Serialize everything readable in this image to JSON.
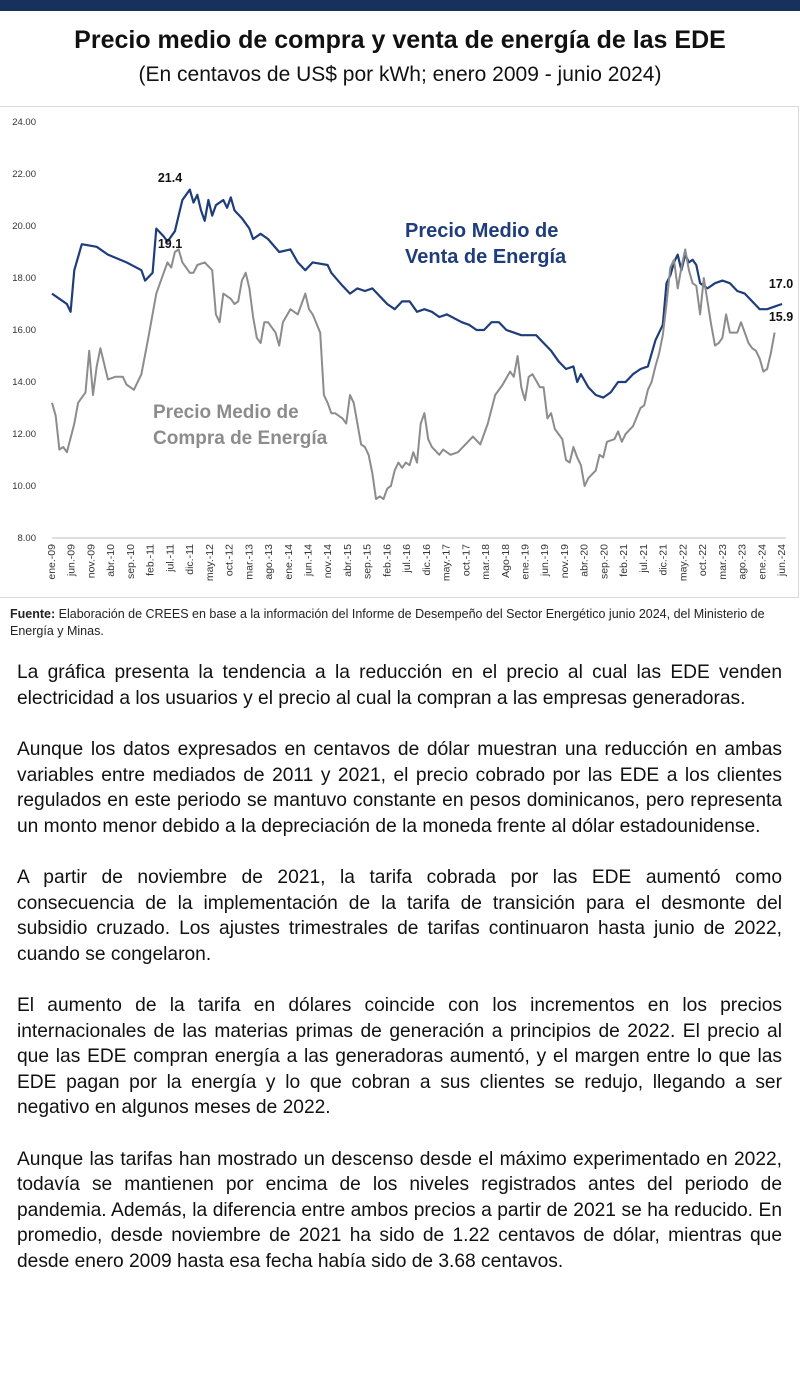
{
  "header": {
    "title": "Precio medio de compra y venta de energía de las EDE",
    "subtitle": "(En centavos de US$ por kWh; enero 2009 - junio 2024)"
  },
  "colors": {
    "topbar": "#16325c",
    "venta": "#1f3d7a",
    "compra": "#8c8c8c"
  },
  "chart_data": {
    "type": "line",
    "title": "Precio medio de compra y venta de energía de las EDE",
    "xlabel": "",
    "ylabel": "",
    "ylim": [
      8,
      24
    ],
    "yticks": [
      "8.00",
      "10.00",
      "12.00",
      "14.00",
      "16.00",
      "18.00",
      "20.00",
      "22.00",
      "24.00"
    ],
    "x_start": "2009-01",
    "x_end": "2024-06",
    "xtick_labels": [
      "ene.-09",
      "jun.-09",
      "nov.-09",
      "abr.-10",
      "sep.-10",
      "feb.-11",
      "jul.-11",
      "dic.-11",
      "may.-12",
      "oct.-12",
      "mar.-13",
      "ago.-13",
      "ene.-14",
      "jun.-14",
      "nov.-14",
      "abr.-15",
      "sep.-15",
      "feb.-16",
      "jul.-16",
      "dic.-16",
      "may.-17",
      "oct.-17",
      "mar.-18",
      "Ago-18",
      "ene.-19",
      "jun.-19",
      "nov.-19",
      "abr.-20",
      "sep.-20",
      "feb.-21",
      "jul.-21",
      "dic.-21",
      "may.-22",
      "oct.-22",
      "mar.-23",
      "ago.-23",
      "ene.-24",
      "jun.-24"
    ],
    "series": [
      {
        "name": "Precio Medio de Venta de Energía",
        "label_line1": "Precio Medio de",
        "label_line2": "Venta de Energía",
        "color": "#1f3d7a",
        "peak_label": "21.4",
        "end_label": "17.0",
        "anchors": [
          [
            0,
            17.4
          ],
          [
            2,
            17.2
          ],
          [
            4,
            17.0
          ],
          [
            5,
            16.7
          ],
          [
            6,
            18.3
          ],
          [
            8,
            19.3
          ],
          [
            12,
            19.2
          ],
          [
            15,
            18.9
          ],
          [
            20,
            18.6
          ],
          [
            24,
            18.3
          ],
          [
            25,
            17.9
          ],
          [
            27,
            18.2
          ],
          [
            28,
            19.9
          ],
          [
            30,
            19.6
          ],
          [
            31,
            19.4
          ],
          [
            33,
            19.8
          ],
          [
            34,
            20.4
          ],
          [
            35,
            21.0
          ],
          [
            36,
            21.2
          ],
          [
            37,
            21.4
          ],
          [
            38,
            20.9
          ],
          [
            39,
            21.2
          ],
          [
            40,
            20.6
          ],
          [
            41,
            20.2
          ],
          [
            42,
            21.0
          ],
          [
            43,
            20.4
          ],
          [
            44,
            20.8
          ],
          [
            46,
            21.0
          ],
          [
            47,
            20.7
          ],
          [
            48,
            21.1
          ],
          [
            49,
            20.6
          ],
          [
            51,
            20.3
          ],
          [
            53,
            19.9
          ],
          [
            54,
            19.5
          ],
          [
            56,
            19.7
          ],
          [
            58,
            19.5
          ],
          [
            61,
            19.0
          ],
          [
            64,
            19.1
          ],
          [
            66,
            18.6
          ],
          [
            68,
            18.3
          ],
          [
            70,
            18.6
          ],
          [
            74,
            18.5
          ],
          [
            75,
            18.2
          ],
          [
            78,
            17.7
          ],
          [
            80,
            17.4
          ],
          [
            82,
            17.6
          ],
          [
            84,
            17.5
          ],
          [
            86,
            17.6
          ],
          [
            88,
            17.3
          ],
          [
            90,
            17.0
          ],
          [
            92,
            16.8
          ],
          [
            94,
            17.1
          ],
          [
            96,
            17.1
          ],
          [
            98,
            16.7
          ],
          [
            100,
            16.8
          ],
          [
            102,
            16.7
          ],
          [
            104,
            16.5
          ],
          [
            106,
            16.6
          ],
          [
            110,
            16.3
          ],
          [
            112,
            16.2
          ],
          [
            114,
            16.0
          ],
          [
            116,
            16.0
          ],
          [
            118,
            16.3
          ],
          [
            120,
            16.3
          ],
          [
            122,
            16.0
          ],
          [
            124,
            15.9
          ],
          [
            126,
            15.8
          ],
          [
            128,
            15.8
          ],
          [
            130,
            15.8
          ],
          [
            132,
            15.5
          ],
          [
            134,
            15.2
          ],
          [
            136,
            14.8
          ],
          [
            138,
            14.5
          ],
          [
            140,
            14.6
          ],
          [
            141,
            14.0
          ],
          [
            142,
            14.3
          ],
          [
            144,
            13.8
          ],
          [
            146,
            13.5
          ],
          [
            148,
            13.4
          ],
          [
            150,
            13.6
          ],
          [
            152,
            14.0
          ],
          [
            154,
            14.0
          ],
          [
            156,
            14.3
          ],
          [
            158,
            14.5
          ],
          [
            160,
            14.6
          ],
          [
            162,
            15.6
          ],
          [
            164,
            16.2
          ],
          [
            165,
            17.8
          ],
          [
            166,
            18.1
          ],
          [
            167,
            18.6
          ],
          [
            168,
            18.9
          ],
          [
            169,
            18.3
          ],
          [
            170,
            18.9
          ],
          [
            171,
            18.6
          ],
          [
            172,
            18.7
          ],
          [
            173,
            18.5
          ],
          [
            174,
            17.8
          ],
          [
            176,
            17.6
          ],
          [
            178,
            17.8
          ],
          [
            180,
            17.9
          ],
          [
            182,
            17.8
          ],
          [
            184,
            17.5
          ],
          [
            186,
            17.4
          ],
          [
            188,
            17.1
          ],
          [
            190,
            16.8
          ],
          [
            192,
            16.8
          ],
          [
            194,
            16.9
          ],
          [
            196,
            17.0
          ]
        ]
      },
      {
        "name": "Precio Medio de Compra de Energía",
        "label_line1": "Precio Medio de",
        "label_line2": "Compra de Energía",
        "color": "#8c8c8c",
        "peak_label": "19.1",
        "end_label": "15.9",
        "anchors": [
          [
            0,
            13.2
          ],
          [
            1,
            12.7
          ],
          [
            2,
            11.4
          ],
          [
            3,
            11.5
          ],
          [
            4,
            11.3
          ],
          [
            6,
            12.4
          ],
          [
            7,
            13.2
          ],
          [
            9,
            13.6
          ],
          [
            10,
            15.2
          ],
          [
            11,
            13.5
          ],
          [
            12,
            14.6
          ],
          [
            13,
            15.3
          ],
          [
            15,
            14.1
          ],
          [
            17,
            14.2
          ],
          [
            19,
            14.2
          ],
          [
            20,
            13.9
          ],
          [
            22,
            13.7
          ],
          [
            24,
            14.3
          ],
          [
            26,
            15.8
          ],
          [
            28,
            17.4
          ],
          [
            30,
            18.2
          ],
          [
            31,
            18.6
          ],
          [
            32,
            18.4
          ],
          [
            33,
            19.0
          ],
          [
            34,
            19.1
          ],
          [
            35,
            18.6
          ],
          [
            36,
            18.4
          ],
          [
            37,
            18.2
          ],
          [
            38,
            18.2
          ],
          [
            39,
            18.5
          ],
          [
            41,
            18.6
          ],
          [
            43,
            18.3
          ],
          [
            44,
            16.6
          ],
          [
            45,
            16.3
          ],
          [
            46,
            17.4
          ],
          [
            48,
            17.2
          ],
          [
            49,
            17.0
          ],
          [
            50,
            17.1
          ],
          [
            51,
            17.9
          ],
          [
            52,
            18.2
          ],
          [
            53,
            17.6
          ],
          [
            54,
            16.5
          ],
          [
            55,
            15.7
          ],
          [
            56,
            15.5
          ],
          [
            57,
            16.3
          ],
          [
            58,
            16.3
          ],
          [
            60,
            15.9
          ],
          [
            61,
            15.4
          ],
          [
            62,
            16.3
          ],
          [
            64,
            16.8
          ],
          [
            66,
            16.6
          ],
          [
            68,
            17.4
          ],
          [
            69,
            16.8
          ],
          [
            70,
            16.6
          ],
          [
            72,
            15.9
          ],
          [
            73,
            13.5
          ],
          [
            74,
            13.2
          ],
          [
            75,
            12.8
          ],
          [
            76,
            12.8
          ],
          [
            78,
            12.6
          ],
          [
            79,
            12.4
          ],
          [
            80,
            13.5
          ],
          [
            81,
            13.2
          ],
          [
            82,
            12.4
          ],
          [
            83,
            11.6
          ],
          [
            84,
            11.5
          ],
          [
            85,
            11.2
          ],
          [
            86,
            10.5
          ],
          [
            87,
            9.5
          ],
          [
            88,
            9.6
          ],
          [
            89,
            9.5
          ],
          [
            90,
            9.9
          ],
          [
            91,
            10.0
          ],
          [
            92,
            10.6
          ],
          [
            93,
            10.9
          ],
          [
            94,
            10.7
          ],
          [
            95,
            10.9
          ],
          [
            96,
            10.8
          ],
          [
            97,
            11.3
          ],
          [
            98,
            10.9
          ],
          [
            99,
            12.4
          ],
          [
            100,
            12.8
          ],
          [
            101,
            11.8
          ],
          [
            102,
            11.5
          ],
          [
            104,
            11.2
          ],
          [
            105,
            11.4
          ],
          [
            107,
            11.2
          ],
          [
            109,
            11.3
          ],
          [
            111,
            11.6
          ],
          [
            113,
            11.9
          ],
          [
            115,
            11.6
          ],
          [
            117,
            12.4
          ],
          [
            119,
            13.5
          ],
          [
            121,
            13.9
          ],
          [
            123,
            14.4
          ],
          [
            124,
            14.2
          ],
          [
            125,
            15.0
          ],
          [
            126,
            13.8
          ],
          [
            127,
            13.3
          ],
          [
            128,
            14.2
          ],
          [
            129,
            14.3
          ],
          [
            131,
            13.8
          ],
          [
            132,
            13.8
          ],
          [
            133,
            12.6
          ],
          [
            134,
            12.8
          ],
          [
            135,
            12.2
          ],
          [
            136,
            12.0
          ],
          [
            137,
            11.8
          ],
          [
            138,
            11.0
          ],
          [
            139,
            10.9
          ],
          [
            140,
            11.5
          ],
          [
            141,
            11.1
          ],
          [
            142,
            10.8
          ],
          [
            143,
            10.0
          ],
          [
            144,
            10.3
          ],
          [
            146,
            10.6
          ],
          [
            147,
            11.2
          ],
          [
            148,
            11.1
          ],
          [
            149,
            11.7
          ],
          [
            151,
            11.8
          ],
          [
            152,
            12.1
          ],
          [
            153,
            11.7
          ],
          [
            154,
            12.0
          ],
          [
            156,
            12.3
          ],
          [
            158,
            13.0
          ],
          [
            159,
            13.1
          ],
          [
            160,
            13.7
          ],
          [
            161,
            14.0
          ],
          [
            162,
            14.6
          ],
          [
            163,
            15.1
          ],
          [
            164,
            15.8
          ],
          [
            165,
            17.0
          ],
          [
            166,
            18.4
          ],
          [
            167,
            18.7
          ],
          [
            168,
            17.6
          ],
          [
            169,
            18.4
          ],
          [
            170,
            19.1
          ],
          [
            171,
            18.3
          ],
          [
            172,
            17.8
          ],
          [
            173,
            17.7
          ],
          [
            174,
            16.6
          ],
          [
            175,
            18.0
          ],
          [
            176,
            17.1
          ],
          [
            177,
            16.2
          ],
          [
            178,
            15.4
          ],
          [
            179,
            15.5
          ],
          [
            180,
            15.7
          ],
          [
            181,
            16.6
          ],
          [
            182,
            15.9
          ],
          [
            184,
            15.9
          ],
          [
            185,
            16.3
          ],
          [
            186,
            15.9
          ],
          [
            187,
            15.5
          ],
          [
            188,
            15.3
          ],
          [
            189,
            15.2
          ],
          [
            190,
            14.9
          ],
          [
            191,
            14.4
          ],
          [
            192,
            14.5
          ],
          [
            193,
            15.1
          ],
          [
            194,
            15.9
          ]
        ]
      }
    ]
  },
  "source": {
    "label": "Fuente:",
    "text": "Elaboración de CREES en base a la información del Informe de Desempeño del Sector Energético junio 2024, del Ministerio de Energía y Minas."
  },
  "paragraphs": [
    "La gráfica presenta la tendencia a la reducción en el precio al cual las EDE venden electricidad a los usuarios y el precio al cual la compran a las empresas generadoras.",
    "Aunque los datos expresados en centavos de dólar muestran una reducción en ambas variables entre mediados de 2011 y 2021, el precio cobrado por las EDE a los clientes regulados en este periodo se mantuvo constante en pesos dominicanos, pero representa un monto menor debido a la depreciación de la moneda frente al dólar estadounidense.",
    "A partir de noviembre de 2021, la tarifa cobrada por las EDE aumentó como consecuencia de la implementación de la tarifa de transición para el desmonte del subsidio cruzado. Los ajustes trimestrales de tarifas continuaron hasta junio de 2022, cuando se congelaron.",
    "El aumento de la tarifa en dólares coincide con los incrementos en los precios internacionales de las materias primas de generación a principios de 2022. El precio al que las EDE compran energía a las generadoras aumentó, y el margen entre lo que las EDE pagan por la energía y lo que cobran a sus clientes se redujo, llegando a ser negativo en algunos meses de 2022.",
    "Aunque las tarifas han mostrado un descenso desde el máximo experimentado en 2022, todavía se mantienen por encima de los niveles registrados antes del periodo de pandemia. Además, la diferencia entre ambos precios a partir de 2021 se ha reducido. En promedio, desde noviembre de 2021 ha sido de 1.22 centavos de dólar, mientras que desde enero 2009 hasta esa fecha había sido de 3.68 centavos."
  ]
}
